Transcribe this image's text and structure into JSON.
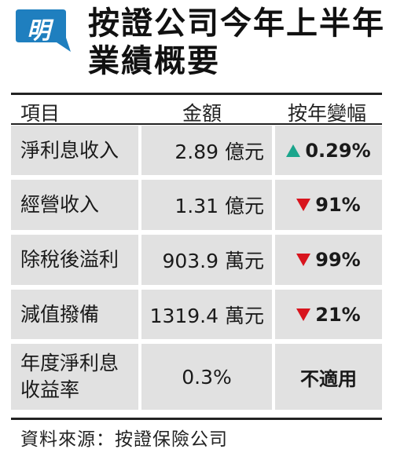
{
  "logo": {
    "char": "明",
    "color": "#1f7fbf"
  },
  "title": {
    "line1": "按證公司今年上半年",
    "line2": "業績概要"
  },
  "table": {
    "headers": {
      "item": "項目",
      "amount": "金額",
      "change": "按年變幅"
    },
    "rows": [
      {
        "item": "淨利息收入",
        "amount": "2.89 億元",
        "change": "0.29%",
        "direction": "up"
      },
      {
        "item": "經營收入",
        "amount": "1.31 億元",
        "change": "91%",
        "direction": "down"
      },
      {
        "item": "除稅後溢利",
        "amount": "903.9 萬元",
        "change": "99%",
        "direction": "down"
      },
      {
        "item": "減值撥備",
        "amount": "1319.4 萬元",
        "change": "21%",
        "direction": "down"
      },
      {
        "item_line1": "年度淨利息",
        "item_line2": "收益率",
        "amount": "0.3%",
        "change": "不適用",
        "direction": "none"
      }
    ],
    "colors": {
      "up": "#1ba58c",
      "down": "#d8141d",
      "cell_bg": "#e1e1e1"
    }
  },
  "source": "資料來源：按證保險公司"
}
